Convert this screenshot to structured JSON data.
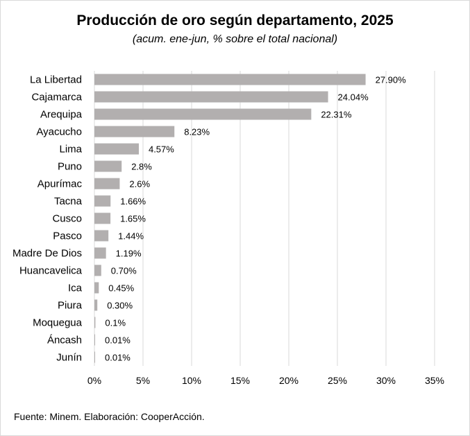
{
  "chart_data": {
    "type": "bar",
    "orientation": "horizontal",
    "title": "Producción de oro según departamento, 2025",
    "subtitle": "(acum. ene-jun, % sobre el total nacional)",
    "categories": [
      "La Libertad",
      "Cajamarca",
      "Arequipa",
      "Ayacucho",
      "Lima",
      "Puno",
      "Apurímac",
      "Tacna",
      "Cusco",
      "Pasco",
      "Madre De Dios",
      "Huancavelica",
      "Ica",
      "Piura",
      "Moquegua",
      "Áncash",
      "Junín"
    ],
    "values": [
      27.9,
      24.04,
      22.31,
      8.23,
      4.57,
      2.8,
      2.6,
      1.66,
      1.65,
      1.44,
      1.19,
      0.7,
      0.45,
      0.3,
      0.1,
      0.01,
      0.01
    ],
    "value_labels": [
      "27.90%",
      "24.04%",
      "22.31%",
      "8.23%",
      "4.57%",
      "2.8%",
      "2.6%",
      "1.66%",
      "1.65%",
      "1.44%",
      "1.19%",
      "0.70%",
      "0.45%",
      "0.30%",
      "0.1%",
      "0.01%",
      "0.01%"
    ],
    "xlim": [
      0,
      35
    ],
    "x_ticks": [
      0,
      5,
      10,
      15,
      20,
      25,
      30,
      35
    ],
    "x_tick_labels": [
      "0%",
      "5%",
      "10%",
      "15%",
      "20%",
      "25%",
      "30%",
      "35%"
    ],
    "grid": "vertical",
    "bar_color": "#b2afaf",
    "grid_color": "#d9d9d9"
  },
  "source": "Fuente: Minem. Elaboración: CooperAcción."
}
